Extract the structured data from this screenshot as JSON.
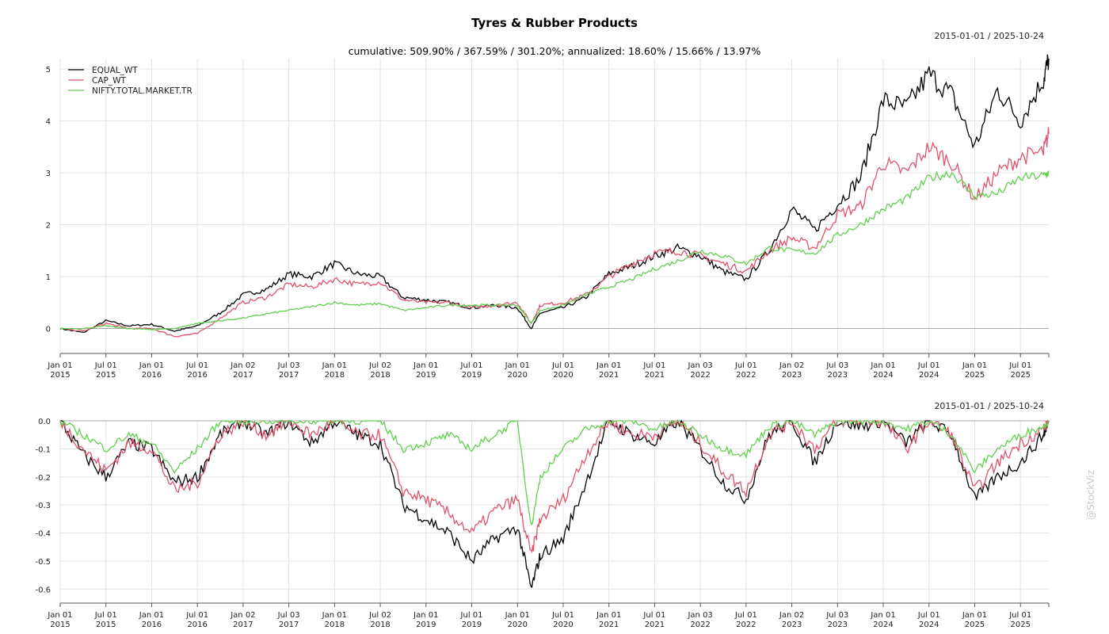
{
  "header": {
    "title": "Tyres & Rubber Products",
    "subtitle": "cumulative: 509.90% / 367.59% / 301.20%; annualized: 18.60% / 15.66% / 13.97%",
    "date_range_top": "2015-01-01 / 2025-10-24",
    "date_range_bottom": "2015-01-01 / 2025-10-24",
    "watermark": "@StockViz"
  },
  "chart_data": [
    {
      "type": "line",
      "title": "Tyres & Rubber Products",
      "subtitle": "cumulative: 509.90% / 367.59% / 301.20%; annualized: 18.60% / 15.66% / 13.97%",
      "date_range": "2015-01-01 / 2025-10-24",
      "ylim": [
        -0.45,
        5.2
      ],
      "yticks": [
        "0",
        "1",
        "2",
        "3",
        "4",
        "5"
      ],
      "xticks": [
        [
          "Jan 01",
          "2015"
        ],
        [
          "Jul 01",
          "2015"
        ],
        [
          "Jan 01",
          "2016"
        ],
        [
          "Jul 01",
          "2016"
        ],
        [
          "Jan 02",
          "2017"
        ],
        [
          "Jul 03",
          "2017"
        ],
        [
          "Jan 01",
          "2018"
        ],
        [
          "Jul 02",
          "2018"
        ],
        [
          "Jan 01",
          "2019"
        ],
        [
          "Jul 01",
          "2019"
        ],
        [
          "Jan 01",
          "2020"
        ],
        [
          "Jul 01",
          "2020"
        ],
        [
          "Jan 01",
          "2021"
        ],
        [
          "Jul 01",
          "2021"
        ],
        [
          "Jan 03",
          "2022"
        ],
        [
          "Jul 01",
          "2022"
        ],
        [
          "Jan 02",
          "2023"
        ],
        [
          "Jul 03",
          "2023"
        ],
        [
          "Jan 01",
          "2024"
        ],
        [
          "Jul 01",
          "2024"
        ],
        [
          "Jan 01",
          "2025"
        ],
        [
          "Jul 01",
          "2025"
        ]
      ],
      "grid": true,
      "legend_position": "top-left",
      "x": [
        2015.0,
        2015.25,
        2015.5,
        2015.75,
        2016.0,
        2016.25,
        2016.5,
        2016.75,
        2017.0,
        2017.25,
        2017.5,
        2017.75,
        2018.0,
        2018.25,
        2018.5,
        2018.75,
        2019.0,
        2019.25,
        2019.5,
        2019.75,
        2020.0,
        2020.15,
        2020.25,
        2020.5,
        2020.75,
        2021.0,
        2021.25,
        2021.5,
        2021.75,
        2022.0,
        2022.25,
        2022.5,
        2022.75,
        2023.0,
        2023.25,
        2023.5,
        2023.75,
        2024.0,
        2024.25,
        2024.5,
        2024.75,
        2025.0,
        2025.25,
        2025.5,
        2025.75,
        2025.81
      ],
      "series": [
        {
          "name": "EQUAL_WT",
          "color": "#000000",
          "values": [
            0.0,
            -0.08,
            0.15,
            0.05,
            0.08,
            -0.05,
            0.05,
            0.3,
            0.65,
            0.75,
            1.05,
            1.0,
            1.25,
            1.05,
            1.0,
            0.6,
            0.55,
            0.5,
            0.4,
            0.45,
            0.4,
            0.0,
            0.3,
            0.4,
            0.6,
            1.05,
            1.2,
            1.4,
            1.55,
            1.4,
            1.1,
            0.95,
            1.5,
            2.3,
            1.9,
            2.4,
            2.9,
            4.4,
            4.25,
            4.9,
            4.5,
            3.5,
            4.6,
            4.0,
            4.8,
            5.2
          ]
        },
        {
          "name": "CAP_WT",
          "color": "#df536b",
          "values": [
            0.0,
            -0.05,
            0.1,
            0.0,
            0.0,
            -0.15,
            -0.1,
            0.2,
            0.5,
            0.6,
            0.85,
            0.8,
            0.95,
            0.85,
            0.9,
            0.55,
            0.5,
            0.5,
            0.4,
            0.45,
            0.5,
            0.1,
            0.45,
            0.5,
            0.65,
            1.0,
            1.25,
            1.45,
            1.5,
            1.4,
            1.25,
            1.1,
            1.5,
            1.75,
            1.55,
            2.2,
            2.35,
            3.2,
            3.0,
            3.5,
            3.2,
            2.5,
            3.0,
            3.3,
            3.4,
            3.75
          ]
        },
        {
          "name": "NIFTY.TOTAL.MARKET.TR",
          "color": "#61d04f",
          "values": [
            0.0,
            0.0,
            0.05,
            0.0,
            -0.02,
            0.0,
            0.1,
            0.15,
            0.2,
            0.28,
            0.35,
            0.42,
            0.5,
            0.45,
            0.48,
            0.35,
            0.4,
            0.45,
            0.45,
            0.45,
            0.45,
            0.1,
            0.35,
            0.45,
            0.65,
            0.8,
            0.95,
            1.15,
            1.3,
            1.5,
            1.4,
            1.25,
            1.55,
            1.5,
            1.45,
            1.8,
            2.0,
            2.3,
            2.5,
            2.9,
            3.0,
            2.55,
            2.6,
            2.9,
            2.95,
            3.0
          ]
        }
      ]
    },
    {
      "type": "line",
      "date_range": "2015-01-01 / 2025-10-24",
      "ylim": [
        -0.65,
        0.0
      ],
      "yticks": [
        "0.0",
        "-0.1",
        "-0.2",
        "-0.3",
        "-0.4",
        "-0.5",
        "-0.6"
      ],
      "xticks": [
        [
          "Jan 01",
          "2015"
        ],
        [
          "Jul 01",
          "2015"
        ],
        [
          "Jan 01",
          "2016"
        ],
        [
          "Jul 01",
          "2016"
        ],
        [
          "Jan 02",
          "2017"
        ],
        [
          "Jul 03",
          "2017"
        ],
        [
          "Jan 01",
          "2018"
        ],
        [
          "Jul 02",
          "2018"
        ],
        [
          "Jan 01",
          "2019"
        ],
        [
          "Jul 01",
          "2019"
        ],
        [
          "Jan 01",
          "2020"
        ],
        [
          "Jul 01",
          "2020"
        ],
        [
          "Jan 01",
          "2021"
        ],
        [
          "Jul 01",
          "2021"
        ],
        [
          "Jan 03",
          "2022"
        ],
        [
          "Jul 01",
          "2022"
        ],
        [
          "Jan 02",
          "2023"
        ],
        [
          "Jul 03",
          "2023"
        ],
        [
          "Jan 01",
          "2024"
        ],
        [
          "Jul 01",
          "2024"
        ],
        [
          "Jan 01",
          "2025"
        ],
        [
          "Jul 01",
          "2025"
        ]
      ],
      "grid": true,
      "x": [
        2015.0,
        2015.25,
        2015.5,
        2015.75,
        2016.0,
        2016.25,
        2016.5,
        2016.75,
        2017.0,
        2017.25,
        2017.5,
        2017.75,
        2018.0,
        2018.25,
        2018.5,
        2018.75,
        2019.0,
        2019.25,
        2019.5,
        2019.75,
        2020.0,
        2020.15,
        2020.25,
        2020.5,
        2020.75,
        2021.0,
        2021.25,
        2021.5,
        2021.75,
        2022.0,
        2022.25,
        2022.5,
        2022.75,
        2023.0,
        2023.25,
        2023.5,
        2023.75,
        2024.0,
        2024.25,
        2024.5,
        2024.75,
        2025.0,
        2025.25,
        2025.5,
        2025.75,
        2025.81
      ],
      "series": [
        {
          "name": "EQUAL_WT",
          "color": "#000000",
          "values": [
            0.0,
            -0.12,
            -0.2,
            -0.08,
            -0.1,
            -0.22,
            -0.2,
            -0.05,
            0.0,
            -0.05,
            0.0,
            -0.08,
            0.0,
            -0.05,
            -0.08,
            -0.3,
            -0.35,
            -0.4,
            -0.5,
            -0.42,
            -0.38,
            -0.6,
            -0.48,
            -0.42,
            -0.22,
            0.0,
            -0.05,
            -0.08,
            0.0,
            -0.1,
            -0.22,
            -0.28,
            -0.05,
            0.0,
            -0.15,
            0.0,
            -0.02,
            0.0,
            -0.08,
            0.0,
            -0.05,
            -0.28,
            -0.2,
            -0.15,
            -0.05,
            0.0
          ]
        },
        {
          "name": "CAP_WT",
          "color": "#df536b",
          "values": [
            0.0,
            -0.1,
            -0.18,
            -0.08,
            -0.1,
            -0.25,
            -0.22,
            -0.05,
            0.0,
            -0.05,
            0.0,
            -0.05,
            0.0,
            -0.05,
            -0.05,
            -0.25,
            -0.28,
            -0.33,
            -0.4,
            -0.32,
            -0.28,
            -0.48,
            -0.35,
            -0.28,
            -0.12,
            0.0,
            -0.05,
            -0.05,
            0.0,
            -0.08,
            -0.18,
            -0.25,
            -0.05,
            0.0,
            -0.1,
            0.0,
            0.0,
            0.0,
            -0.1,
            0.0,
            -0.05,
            -0.25,
            -0.15,
            -0.08,
            -0.03,
            0.0
          ]
        },
        {
          "name": "NIFTY.TOTAL.MARKET.TR",
          "color": "#61d04f",
          "values": [
            0.0,
            -0.05,
            -0.1,
            -0.05,
            -0.08,
            -0.18,
            -0.1,
            0.0,
            0.0,
            0.0,
            0.0,
            0.0,
            0.0,
            0.0,
            0.0,
            -0.1,
            -0.08,
            -0.05,
            -0.1,
            -0.05,
            0.0,
            -0.38,
            -0.2,
            -0.1,
            -0.03,
            0.0,
            0.0,
            -0.03,
            0.0,
            -0.05,
            -0.1,
            -0.12,
            -0.02,
            0.0,
            -0.05,
            0.0,
            0.0,
            0.0,
            -0.03,
            0.0,
            -0.05,
            -0.18,
            -0.1,
            -0.05,
            -0.02,
            0.0
          ]
        }
      ]
    }
  ]
}
